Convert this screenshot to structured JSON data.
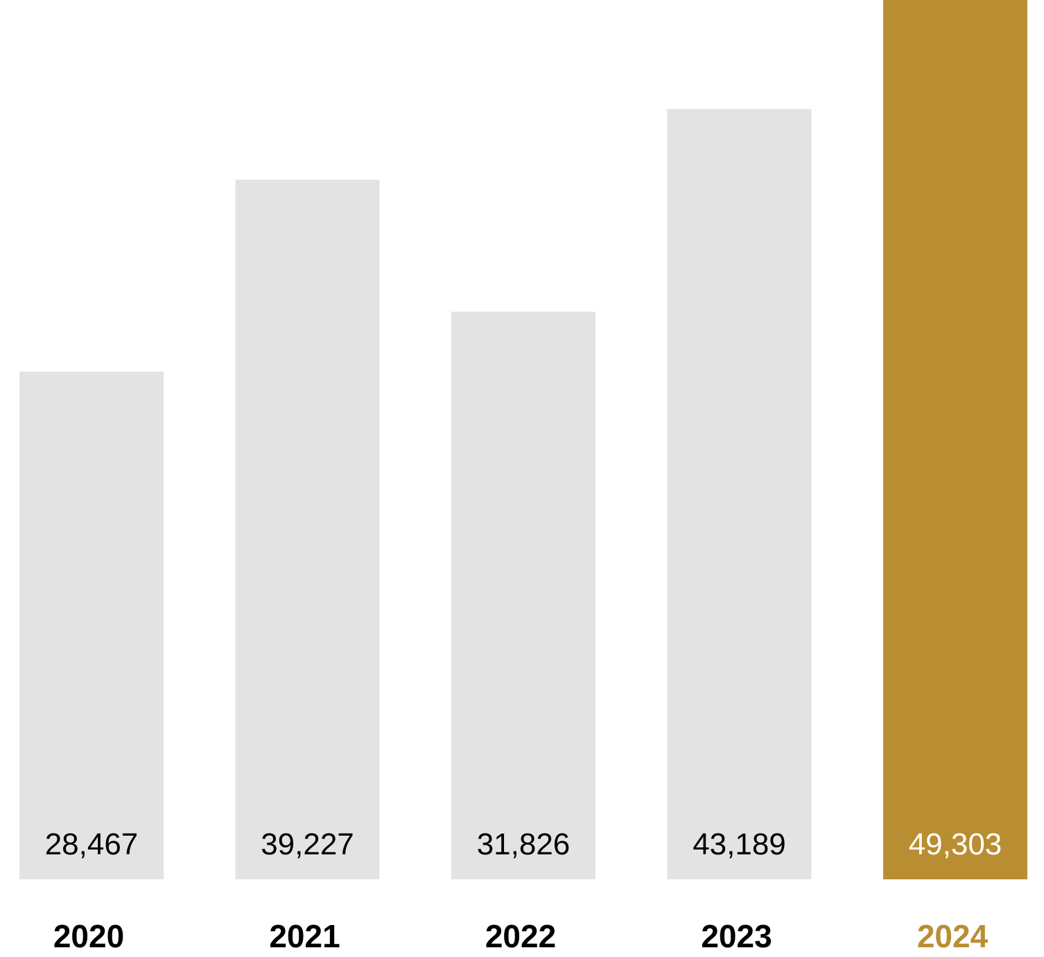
{
  "chart_data": {
    "type": "bar",
    "title": "",
    "xlabel": "",
    "ylabel": "",
    "categories": [
      "2020",
      "2021",
      "2022",
      "2023",
      "2024"
    ],
    "values": [
      28467,
      39227,
      31826,
      43189,
      49303
    ],
    "value_labels": [
      "28,467",
      "39,227",
      "31,826",
      "43,189",
      "49,303"
    ],
    "ylim": [
      0,
      49303
    ],
    "grid": false,
    "legend": "none",
    "highlight_index": 4,
    "colors": {
      "bar": "#e3e3e3",
      "bar_highlight": "#b98e33",
      "label": "#000000",
      "label_on_highlight": "#ffffff",
      "category_highlight": "#b98e33"
    }
  }
}
